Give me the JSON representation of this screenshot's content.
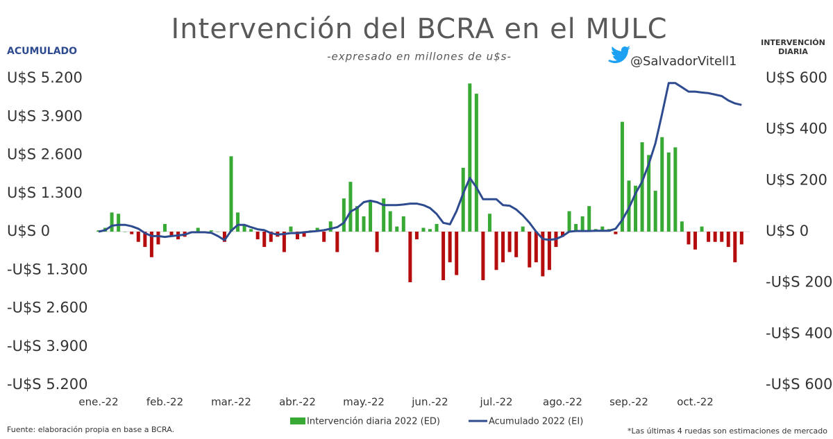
{
  "chart_data": {
    "type": "bar",
    "title": "Intervención del BCRA en el MULC",
    "subtitle": "-expresado en millones de u$s-",
    "y_label": "ACUMULADO",
    "y2_label": "INTERVENCIÓN DIARIA",
    "handle": "@SalvadorVitell1",
    "source": "Fuente:  elaboración propia en base a BCRA.",
    "note": "*Las últimas 4 ruedas son estimaciones de mercado",
    "categories": [
      "ene.-22",
      null,
      null,
      null,
      null,
      null,
      null,
      null,
      null,
      null,
      "feb.-22",
      null,
      null,
      null,
      null,
      null,
      null,
      null,
      null,
      null,
      "mar.-22",
      null,
      null,
      null,
      null,
      null,
      null,
      null,
      null,
      null,
      "abr.-22",
      null,
      null,
      null,
      null,
      null,
      null,
      null,
      null,
      null,
      "may.-22",
      null,
      null,
      null,
      null,
      null,
      null,
      null,
      null,
      null,
      "jun.-22",
      null,
      null,
      null,
      null,
      null,
      null,
      null,
      null,
      null,
      "jul.-22",
      null,
      null,
      null,
      null,
      null,
      null,
      null,
      null,
      null,
      "ago.-22",
      null,
      null,
      null,
      null,
      null,
      null,
      null,
      null,
      null,
      "sep.-22",
      null,
      null,
      null,
      null,
      null,
      null,
      null,
      null,
      null,
      "oct.-22",
      null,
      null,
      null,
      null,
      null,
      null,
      null
    ],
    "series": [
      {
        "name": "Intervención diaria 2022 (ED)",
        "type": "bar",
        "axis": "y2",
        "color": "#38a935",
        "negative_color": "#b50d0d",
        "values": [
          5,
          15,
          75,
          70,
          0,
          -10,
          -40,
          -60,
          -100,
          -50,
          30,
          -20,
          -30,
          -20,
          0,
          15,
          -5,
          5,
          0,
          -40,
          295,
          75,
          25,
          10,
          -30,
          -60,
          -40,
          -20,
          -80,
          20,
          -30,
          -20,
          5,
          15,
          -40,
          40,
          -80,
          130,
          195,
          100,
          60,
          120,
          -80,
          130,
          80,
          20,
          60,
          -198,
          -30,
          15,
          10,
          30,
          -190,
          -120,
          -170,
          250,
          580,
          540,
          -190,
          70,
          -150,
          -120,
          -80,
          -100,
          20,
          -140,
          -120,
          -175,
          -150,
          -60,
          -20,
          80,
          30,
          60,
          100,
          10,
          20,
          10,
          -10,
          430,
          200,
          180,
          350,
          300,
          160,
          370,
          310,
          330,
          40,
          -50,
          -70,
          20,
          -40,
          -40,
          -40,
          -60,
          -120,
          -50
        ]
      },
      {
        "name": "Acumulado 2022 (EI)",
        "type": "line",
        "axis": "y",
        "color": "#2f4b8f",
        "values": [
          0,
          50,
          200,
          230,
          230,
          180,
          100,
          -50,
          -150,
          -150,
          -180,
          -150,
          -130,
          -100,
          -20,
          -20,
          -20,
          -40,
          -150,
          -290,
          30,
          230,
          230,
          150,
          80,
          50,
          -50,
          -100,
          -80,
          -50,
          -50,
          -20,
          0,
          20,
          50,
          100,
          150,
          300,
          680,
          800,
          1000,
          1050,
          1000,
          900,
          900,
          900,
          920,
          950,
          950,
          900,
          800,
          600,
          300,
          250,
          700,
          1300,
          1820,
          1500,
          1100,
          1100,
          1100,
          900,
          880,
          750,
          550,
          300,
          0,
          -250,
          -280,
          -250,
          -150,
          0,
          20,
          20,
          20,
          30,
          30,
          30,
          100,
          400,
          800,
          1300,
          1700,
          2300,
          3000,
          4000,
          5040,
          5040,
          4900,
          4750,
          4750,
          4720,
          4700,
          4650,
          4600,
          4450,
          4350,
          4300
        ]
      }
    ],
    "ylim": [
      -5200,
      5200
    ],
    "yticks": [
      {
        "value": 5200,
        "label": "U$S 5.200"
      },
      {
        "value": 3900,
        "label": "U$S 3.900"
      },
      {
        "value": 2600,
        "label": "U$S 2.600"
      },
      {
        "value": 1300,
        "label": "U$S 1.300"
      },
      {
        "value": 0,
        "label": "U$S 0"
      },
      {
        "value": -1300,
        "label": "-U$S 1.300"
      },
      {
        "value": -2600,
        "label": "-U$S 2.600"
      },
      {
        "value": -3900,
        "label": "-U$S 3.900"
      },
      {
        "value": -5200,
        "label": "-U$S 5.200"
      }
    ],
    "y2lim": [
      -600,
      600
    ],
    "y2ticks": [
      {
        "value": 600,
        "label": "U$S 600"
      },
      {
        "value": 400,
        "label": "U$S 400"
      },
      {
        "value": 200,
        "label": "U$S 200"
      },
      {
        "value": 0,
        "label": "U$S 0"
      },
      {
        "value": -200,
        "label": "-U$S 200"
      },
      {
        "value": -400,
        "label": "-U$S 400"
      },
      {
        "value": -600,
        "label": "-U$S 600"
      }
    ],
    "legend": "bottom"
  }
}
